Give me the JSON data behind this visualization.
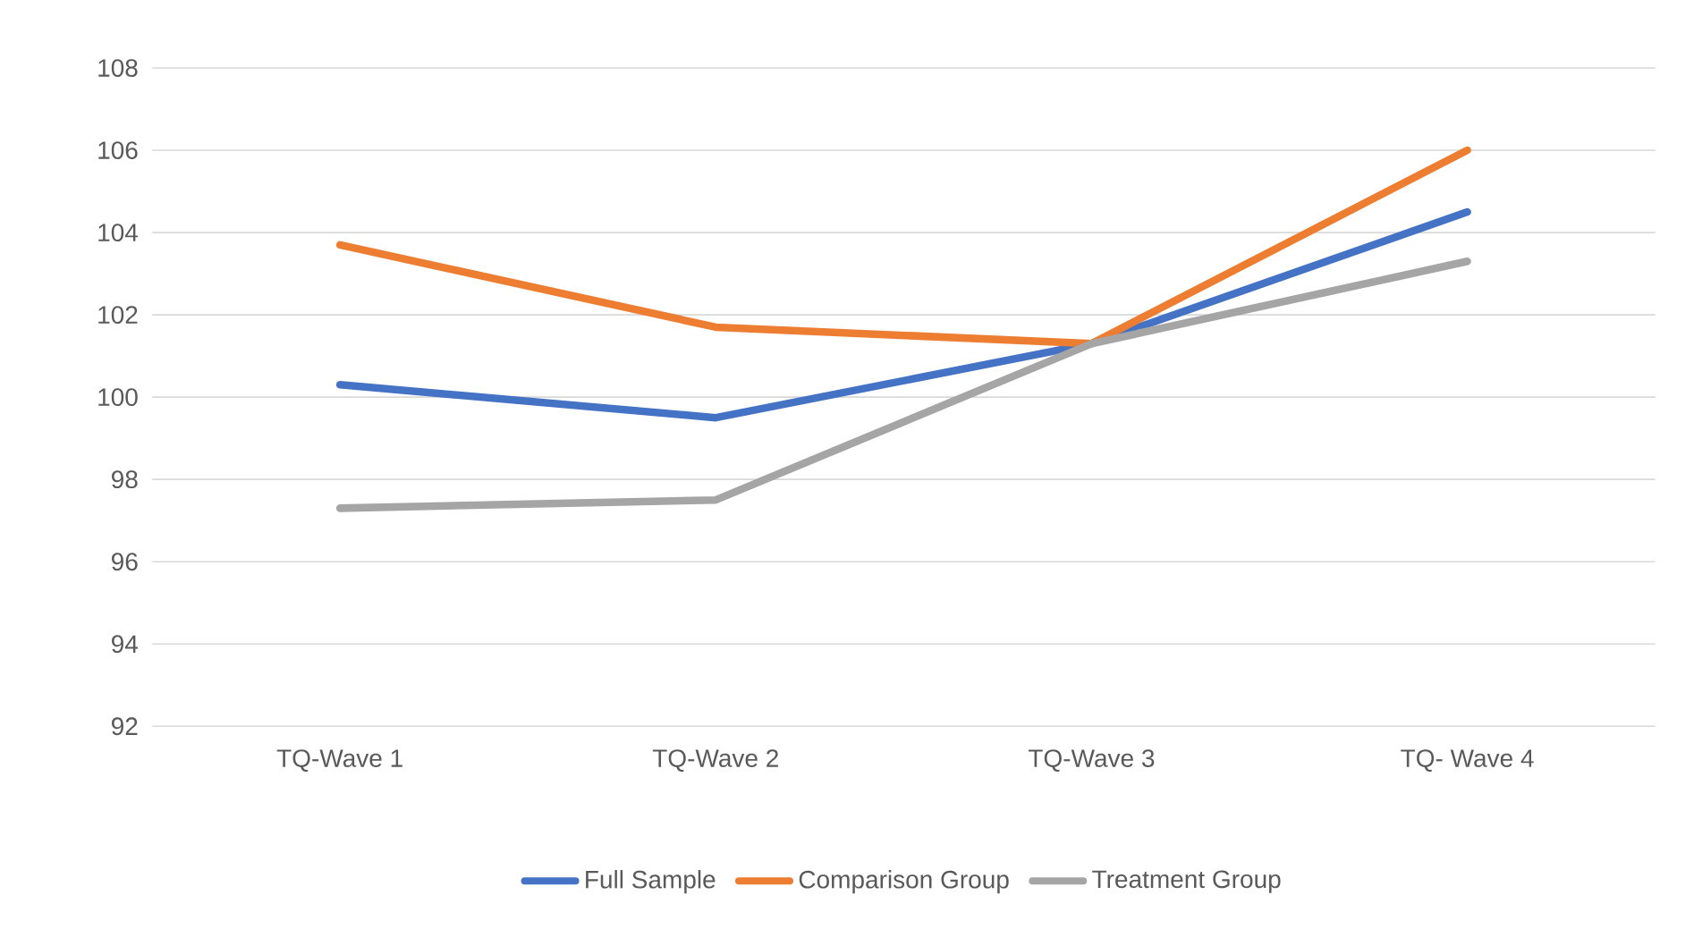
{
  "chart_data": {
    "type": "line",
    "categories": [
      "TQ-Wave 1",
      "TQ-Wave 2",
      "TQ-Wave 3",
      "TQ- Wave 4"
    ],
    "series": [
      {
        "name": "Full Sample",
        "color": "#4472c4",
        "values": [
          100.3,
          99.5,
          101.3,
          104.5
        ]
      },
      {
        "name": "Comparison Group",
        "color": "#ed7d31",
        "values": [
          103.7,
          101.7,
          101.3,
          106.0
        ]
      },
      {
        "name": "Treatment Group",
        "color": "#a5a5a5",
        "values": [
          97.3,
          97.5,
          101.3,
          103.3
        ]
      }
    ],
    "ylim": [
      92,
      108
    ],
    "yticks": [
      92,
      94,
      96,
      98,
      100,
      102,
      104,
      106,
      108
    ],
    "grid": "y",
    "legend": "bottom",
    "marker": "none",
    "line_style": "solid"
  }
}
